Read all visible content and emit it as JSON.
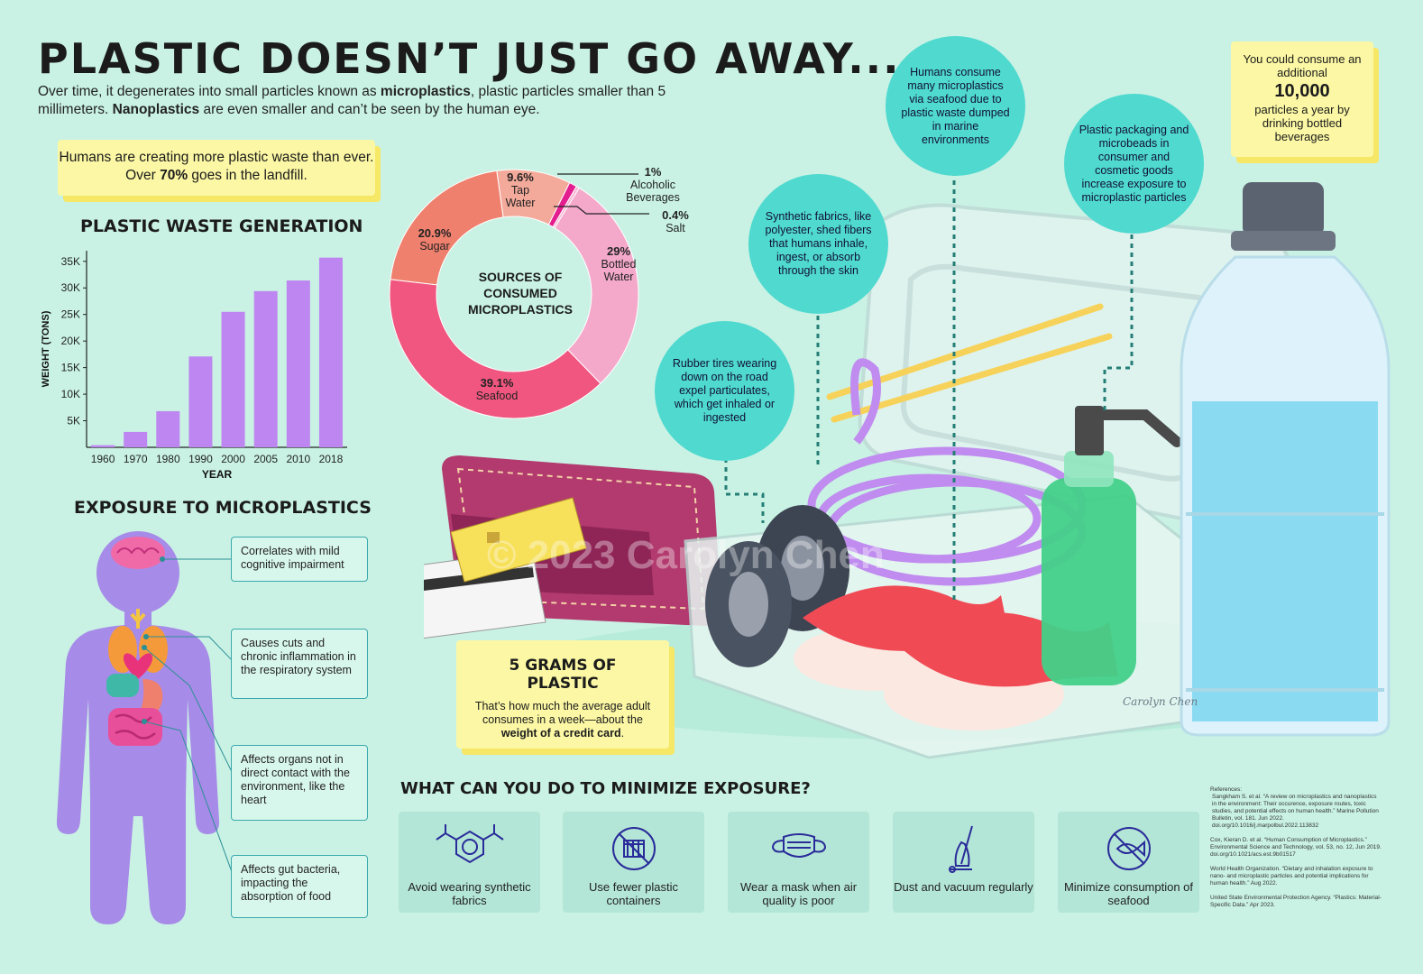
{
  "header": {
    "title": "PLASTIC DOESN’T JUST GO AWAY...",
    "intro_1": "Over time, it degenerates into small particles known as ",
    "intro_bold_1": "microplastics",
    "intro_2": ", plastic particles smaller than 5 millimeters. ",
    "intro_bold_2": "Nanoplastics",
    "intro_3": " are even smaller and can’t be seen by the human eye."
  },
  "landfill_note": {
    "text_1": "Humans are creating more plastic waste than ever. Over ",
    "bold": "70%",
    "text_2": " goes in the landfill."
  },
  "waste_chart": {
    "heading": "PLASTIC WASTE GENERATION",
    "ylabel": "WEIGHT (TONS)",
    "xlabel": "YEAR"
  },
  "chart_data": [
    {
      "type": "bar",
      "title": "PLASTIC WASTE GENERATION",
      "xlabel": "YEAR",
      "ylabel": "WEIGHT (TONS)",
      "categories": [
        "1960",
        "1970",
        "1980",
        "1990",
        "2000",
        "2005",
        "2010",
        "2018"
      ],
      "values": [
        400,
        2900,
        6800,
        17100,
        25500,
        29400,
        31400,
        35700
      ],
      "y_ticks": [
        "5K",
        "10K",
        "15K",
        "20K",
        "25K",
        "30K",
        "35K"
      ],
      "y_tick_values": [
        5000,
        10000,
        15000,
        20000,
        25000,
        30000,
        35000
      ],
      "ylim": [
        0,
        37000
      ],
      "bar_color": "#be86f0",
      "grid": false
    },
    {
      "type": "pie",
      "title": "SOURCES OF CONSUMED MICROPLASTICS",
      "slices": [
        {
          "label": "Tap Water",
          "value": 9.6,
          "display": "9.6%",
          "color": "#f4aa9b"
        },
        {
          "label": "Alcoholic Beverages",
          "value": 1,
          "display": "1%",
          "color": "#e31f8f"
        },
        {
          "label": "Salt",
          "value": 0.4,
          "display": "0.4%",
          "color": "#f7b6d3"
        },
        {
          "label": "Bottled Water",
          "value": 29,
          "display": "29%",
          "color": "#f4a9cb"
        },
        {
          "label": "Seafood",
          "value": 39.1,
          "display": "39.1%",
          "color": "#f0567f"
        },
        {
          "label": "Sugar",
          "value": 20.9,
          "display": "20.9%",
          "color": "#f0806e"
        }
      ]
    }
  ],
  "donut": {
    "center": "SOURCES OF\nCONSUMED\nMICROPLASTICS",
    "tap_pct": "9.6%",
    "tap_lbl": "Tap\nWater",
    "sugar_pct": "20.9%",
    "sugar_lbl": "Sugar",
    "seafood_pct": "39.1%",
    "seafood_lbl": "Seafood",
    "bottled_pct": "29%",
    "bottled_lbl": "Bottled\nWater",
    "alc_pct": "1%",
    "alc_lbl": "Alcoholic\nBeverages",
    "salt_pct": "0.4%",
    "salt_lbl": "Salt"
  },
  "exposure": {
    "heading": "EXPOSURE TO MICROPLASTICS",
    "callouts": [
      "Correlates with mild cognitive impairment",
      "Causes cuts and chronic inflammation in the respiratory system",
      "Affects organs not in direct contact with the environment, like the heart",
      "Affects gut bacteria, impacting the absorption of food"
    ]
  },
  "bubbles": {
    "tires": "Rubber tires wearing down on the road expel particulates, which get inhaled or ingested",
    "fabrics": "Synthetic fabrics, like polyester, shed fibers that humans inhale, ingest, or absorb through the skin",
    "seafood": "Humans consume many microplastics via seafood due to plastic waste dumped in marine environments",
    "packaging": "Plastic packaging and microbeads in consumer and cosmetic goods increase exposure to microplastic particles"
  },
  "bottled_note": {
    "line_1": "You could consume an additional",
    "number": "10,000",
    "line_2": "particles a year by drinking bottled beverages"
  },
  "grams_note": {
    "heading": "5 GRAMS OF PLASTIC",
    "text_1": "That’s how much the average adult consumes in a week—about the ",
    "bold": "weight of a credit card",
    "text_2": "."
  },
  "minimize": {
    "heading": "WHAT CAN YOU DO TO MINIMIZE EXPOSURE?",
    "tips": [
      {
        "icon": "molecule-icon",
        "label": "Avoid wearing synthetic fabrics"
      },
      {
        "icon": "no-containers-icon",
        "label": "Use fewer plastic containers"
      },
      {
        "icon": "face-mask-icon",
        "label": "Wear a mask when air quality is poor"
      },
      {
        "icon": "vacuum-icon",
        "label": "Dust and vacuum regularly"
      },
      {
        "icon": "no-fish-icon",
        "label": "Minimize consumption of seafood"
      }
    ]
  },
  "references": {
    "heading": "References:",
    "ref_1": "Sangkham S. et al. “A review on microplastics and nanoplastics in the environment: Their occurence, exposure routes, toxic studies, and potential effects on human health.” Marine Pollution Bulletin, vol. 181. Jun 2022. doi.org/10.1016/j.marpolbul.2022.113832",
    "ref_2": "Cox, Kieran D. et al. “Human Consumption of Microplastics.” Environmental Science and Technology, vol. 53, no. 12, Jun 2019. doi.org/10.1021/acs.est.9b01517",
    "ref_3": "World Health Organization. “Dietary and inhalation exposure to nano- and microplastic particles and potential implications for human health.” Aug 2022.",
    "ref_4": "United State Environmental Protection Agency. “Plastics: Material-Specific Data.” Apr 2023."
  },
  "watermark": "© 2023 Carolyn Chen",
  "signature": "Carolyn Chen",
  "colors": {
    "background": "#c9f2e4",
    "bubble": "#4fd9cf",
    "sticky": "#fbf7a4",
    "bar": "#be86f0",
    "body_silhouette": "#a78be8"
  }
}
